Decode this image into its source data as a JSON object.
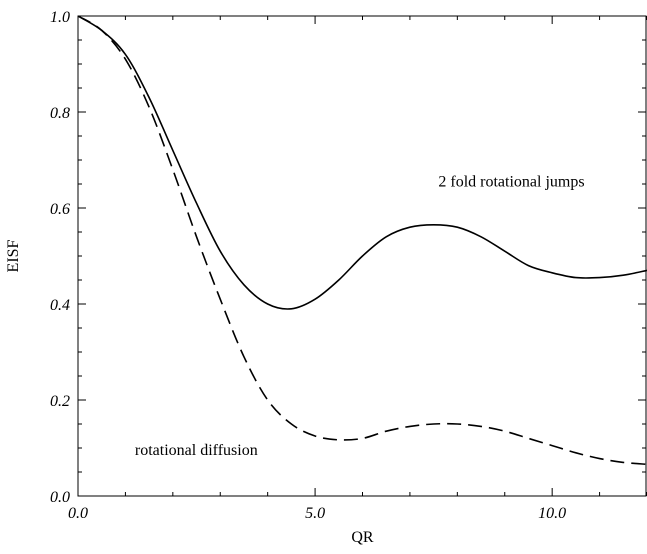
{
  "chart_data": {
    "type": "line",
    "xlabel": "QR",
    "ylabel": "EISF",
    "xlim": [
      0,
      12
    ],
    "ylim": [
      0,
      1
    ],
    "x_ticks": [
      {
        "value": 0,
        "label": "0.0"
      },
      {
        "value": 5,
        "label": "5.0"
      },
      {
        "value": 10,
        "label": "10.0"
      }
    ],
    "y_ticks": [
      {
        "value": 0,
        "label": "0.0"
      },
      {
        "value": 0.2,
        "label": "0.2"
      },
      {
        "value": 0.4,
        "label": "0.4"
      },
      {
        "value": 0.6,
        "label": "0.6"
      },
      {
        "value": 0.8,
        "label": "0.8"
      },
      {
        "value": 1.0,
        "label": "1.0"
      }
    ],
    "grid": false,
    "series": [
      {
        "style": "solid",
        "color": "#000000",
        "x": [
          0,
          0.5,
          1.0,
          1.5,
          2.0,
          2.5,
          3.0,
          3.5,
          4.0,
          4.5,
          5.0,
          5.5,
          6.0,
          6.5,
          7.0,
          7.5,
          8.0,
          8.5,
          9.0,
          9.5,
          10.0,
          10.5,
          11.0,
          11.5,
          12.0
        ],
        "y": [
          1.0,
          0.97,
          0.92,
          0.83,
          0.72,
          0.61,
          0.51,
          0.44,
          0.4,
          0.39,
          0.41,
          0.45,
          0.5,
          0.54,
          0.56,
          0.565,
          0.56,
          0.54,
          0.51,
          0.48,
          0.465,
          0.455,
          0.455,
          0.46,
          0.47
        ]
      },
      {
        "style": "dashed",
        "color": "#000000",
        "x": [
          0,
          0.5,
          1.0,
          1.5,
          2.0,
          2.5,
          3.0,
          3.5,
          4.0,
          4.5,
          5.0,
          5.5,
          6.0,
          6.5,
          7.0,
          7.5,
          8.0,
          8.5,
          9.0,
          9.5,
          10.0,
          10.5,
          11.0,
          11.5,
          12.0
        ],
        "y": [
          1.0,
          0.97,
          0.91,
          0.81,
          0.68,
          0.54,
          0.41,
          0.29,
          0.2,
          0.15,
          0.125,
          0.117,
          0.12,
          0.135,
          0.145,
          0.15,
          0.15,
          0.145,
          0.135,
          0.12,
          0.105,
          0.09,
          0.078,
          0.07,
          0.066
        ]
      }
    ],
    "annotations": [
      {
        "text": "2 fold rotational jumps",
        "x": 7.6,
        "y": 0.645
      },
      {
        "text": "rotational diffusion",
        "x": 1.2,
        "y": 0.085
      }
    ]
  }
}
